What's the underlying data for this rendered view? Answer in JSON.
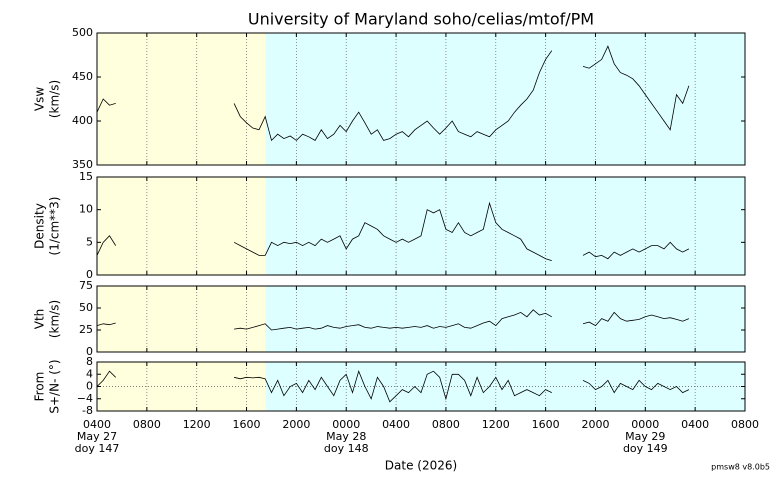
{
  "chart_data": {
    "type": "line",
    "title": "University of Maryland  soho/celias/mtof/PM",
    "xlabel": "Date (2026)",
    "footer": "pmsw8 v8.0b5",
    "line_color": "#000000",
    "xlim": [
      "2026-05-27T04:00",
      "2026-05-29T08:00"
    ],
    "xticks": [
      {
        "value": "2026-05-27T04:00",
        "label": "0400"
      },
      {
        "value": "2026-05-27T08:00",
        "label": "0800"
      },
      {
        "value": "2026-05-27T12:00",
        "label": "1200"
      },
      {
        "value": "2026-05-27T16:00",
        "label": "1600"
      },
      {
        "value": "2026-05-27T20:00",
        "label": "2000"
      },
      {
        "value": "2026-05-28T00:00",
        "label": "0000"
      },
      {
        "value": "2026-05-28T04:00",
        "label": "0400"
      },
      {
        "value": "2026-05-28T08:00",
        "label": "0800"
      },
      {
        "value": "2026-05-28T12:00",
        "label": "1200"
      },
      {
        "value": "2026-05-28T16:00",
        "label": "1600"
      },
      {
        "value": "2026-05-28T20:00",
        "label": "2000"
      },
      {
        "value": "2026-05-29T00:00",
        "label": "0000"
      },
      {
        "value": "2026-05-29T04:00",
        "label": "0400"
      },
      {
        "value": "2026-05-29T08:00",
        "label": "0800"
      }
    ],
    "day_labels": [
      {
        "at": "2026-05-27T04:00",
        "date": "May 27",
        "doy": "doy 147"
      },
      {
        "at": "2026-05-28T00:00",
        "date": "May 28",
        "doy": "doy 148"
      },
      {
        "at": "2026-05-29T00:00",
        "date": "May 29",
        "doy": "doy 149"
      }
    ],
    "shading": [
      {
        "from": "2026-05-27T04:00",
        "to": "2026-05-27T17:30",
        "color": "#ffffdd"
      },
      {
        "from": "2026-05-27T17:30",
        "to": "2026-05-29T08:00",
        "color": "#ddffff"
      }
    ],
    "grid": true,
    "x": [
      "2026-05-27T04:00",
      "2026-05-27T04:30",
      "2026-05-27T05:00",
      "2026-05-27T05:30",
      "2026-05-27T06:00",
      "2026-05-27T06:30",
      "2026-05-27T07:00",
      "2026-05-27T07:30",
      "2026-05-27T08:00",
      "2026-05-27T08:30",
      "2026-05-27T09:00",
      "2026-05-27T09:30",
      "2026-05-27T10:00",
      "2026-05-27T10:30",
      "2026-05-27T11:00",
      "2026-05-27T11:30",
      "2026-05-27T12:00",
      "2026-05-27T12:30",
      "2026-05-27T13:00",
      "2026-05-27T13:30",
      "2026-05-27T14:00",
      "2026-05-27T14:30",
      "2026-05-27T15:00",
      "2026-05-27T15:30",
      "2026-05-27T16:00",
      "2026-05-27T16:30",
      "2026-05-27T17:00",
      "2026-05-27T17:30",
      "2026-05-27T18:00",
      "2026-05-27T18:30",
      "2026-05-27T19:00",
      "2026-05-27T19:30",
      "2026-05-27T20:00",
      "2026-05-27T20:30",
      "2026-05-27T21:00",
      "2026-05-27T21:30",
      "2026-05-27T22:00",
      "2026-05-27T22:30",
      "2026-05-27T23:00",
      "2026-05-27T23:30",
      "2026-05-28T00:00",
      "2026-05-28T00:30",
      "2026-05-28T01:00",
      "2026-05-28T01:30",
      "2026-05-28T02:00",
      "2026-05-28T02:30",
      "2026-05-28T03:00",
      "2026-05-28T03:30",
      "2026-05-28T04:00",
      "2026-05-28T04:30",
      "2026-05-28T05:00",
      "2026-05-28T05:30",
      "2026-05-28T06:00",
      "2026-05-28T06:30",
      "2026-05-28T07:00",
      "2026-05-28T07:30",
      "2026-05-28T08:00",
      "2026-05-28T08:30",
      "2026-05-28T09:00",
      "2026-05-28T09:30",
      "2026-05-28T10:00",
      "2026-05-28T10:30",
      "2026-05-28T11:00",
      "2026-05-28T11:30",
      "2026-05-28T12:00",
      "2026-05-28T12:30",
      "2026-05-28T13:00",
      "2026-05-28T13:30",
      "2026-05-28T14:00",
      "2026-05-28T14:30",
      "2026-05-28T15:00",
      "2026-05-28T15:30",
      "2026-05-28T16:00",
      "2026-05-28T16:30",
      "2026-05-28T17:00",
      "2026-05-28T17:30",
      "2026-05-28T18:00",
      "2026-05-28T18:30",
      "2026-05-28T19:00",
      "2026-05-28T19:30",
      "2026-05-28T20:00",
      "2026-05-28T20:30",
      "2026-05-28T21:00",
      "2026-05-28T21:30",
      "2026-05-28T22:00",
      "2026-05-28T22:30",
      "2026-05-28T23:00",
      "2026-05-28T23:30",
      "2026-05-29T00:00",
      "2026-05-29T00:30",
      "2026-05-29T01:00",
      "2026-05-29T01:30",
      "2026-05-29T02:00",
      "2026-05-29T02:30",
      "2026-05-29T03:00",
      "2026-05-29T03:30",
      "2026-05-29T04:00",
      "2026-05-29T04:30",
      "2026-05-29T05:00",
      "2026-05-29T05:30",
      "2026-05-29T06:00",
      "2026-05-29T06:30",
      "2026-05-29T07:00",
      "2026-05-29T07:30",
      "2026-05-29T08:00"
    ],
    "panels": [
      {
        "ylabel": [
          "Vsw",
          "(km/s)"
        ],
        "ylim": [
          350,
          500
        ],
        "yticks": [
          350,
          400,
          450,
          500
        ],
        "values": [
          410,
          425,
          418,
          420,
          null,
          null,
          null,
          null,
          null,
          null,
          null,
          null,
          null,
          null,
          null,
          null,
          null,
          null,
          null,
          null,
          null,
          null,
          420,
          405,
          398,
          392,
          390,
          405,
          378,
          385,
          380,
          383,
          378,
          385,
          382,
          378,
          390,
          380,
          385,
          395,
          388,
          400,
          410,
          398,
          385,
          390,
          378,
          380,
          385,
          388,
          382,
          390,
          395,
          400,
          392,
          385,
          392,
          400,
          388,
          385,
          382,
          388,
          385,
          382,
          390,
          395,
          400,
          410,
          418,
          425,
          435,
          455,
          470,
          480,
          null,
          null,
          null,
          null,
          462,
          460,
          465,
          470,
          485,
          465,
          455,
          452,
          448,
          440,
          430,
          420,
          410,
          400,
          390,
          430,
          420,
          440,
          null,
          null,
          null,
          null,
          null,
          null,
          null,
          null,
          null
        ]
      },
      {
        "ylabel": [
          "Density",
          "(1/cm**3)"
        ],
        "ylim": [
          0,
          15
        ],
        "yticks": [
          0,
          5,
          10,
          15
        ],
        "values": [
          3,
          5,
          6,
          4.5,
          null,
          null,
          null,
          null,
          null,
          null,
          null,
          null,
          null,
          null,
          null,
          null,
          null,
          null,
          null,
          null,
          null,
          null,
          5,
          4.5,
          4,
          3.5,
          3,
          3,
          5,
          4.5,
          5,
          4.8,
          5,
          4.5,
          5,
          4.5,
          5.5,
          5,
          5.5,
          6,
          4,
          5.5,
          6,
          8,
          7.5,
          7,
          6,
          5.5,
          5,
          5.5,
          5,
          5.5,
          6,
          10,
          9.5,
          10,
          7,
          6.5,
          8,
          6.5,
          6,
          6.5,
          7,
          11,
          8,
          7,
          6.5,
          6,
          5.5,
          4,
          3.5,
          3,
          2.5,
          2.2,
          null,
          null,
          null,
          null,
          3,
          3.5,
          2.8,
          3,
          2.5,
          3.5,
          3,
          3.5,
          4,
          3.5,
          4,
          4.5,
          4.5,
          4,
          5,
          4,
          3.5,
          4,
          null,
          null,
          null,
          null,
          null,
          null,
          null,
          null,
          null
        ]
      },
      {
        "ylabel": [
          "Vth",
          "(km/s)"
        ],
        "ylim": [
          0,
          75
        ],
        "yticks": [
          0,
          25,
          50,
          75
        ],
        "values": [
          30,
          32,
          31,
          33,
          null,
          null,
          null,
          null,
          null,
          null,
          null,
          null,
          null,
          null,
          null,
          null,
          null,
          null,
          null,
          null,
          null,
          null,
          26,
          27,
          26,
          28,
          30,
          32,
          25,
          26,
          27,
          28,
          26,
          27,
          28,
          26,
          27,
          30,
          28,
          27,
          29,
          30,
          31,
          28,
          27,
          29,
          28,
          27,
          28,
          27,
          28,
          29,
          28,
          30,
          27,
          29,
          28,
          30,
          32,
          28,
          27,
          30,
          33,
          35,
          30,
          38,
          40,
          42,
          45,
          40,
          48,
          42,
          44,
          40,
          null,
          null,
          null,
          null,
          32,
          34,
          30,
          38,
          35,
          45,
          38,
          35,
          36,
          37,
          40,
          42,
          40,
          38,
          39,
          37,
          35,
          38,
          null,
          null,
          null,
          null,
          null,
          null,
          null,
          null,
          null
        ]
      },
      {
        "ylabel": [
          "From",
          "S+/N- (°)"
        ],
        "ylim": [
          -8,
          8
        ],
        "yticks": [
          -8,
          {
            "value": -4,
            "label": "−4"
          },
          0,
          4,
          8
        ],
        "zero_line": true,
        "yticks_fix": null,
        "values": [
          0,
          2,
          5,
          3,
          null,
          null,
          null,
          null,
          null,
          null,
          null,
          null,
          null,
          null,
          null,
          null,
          null,
          null,
          null,
          null,
          null,
          null,
          3,
          2.5,
          3,
          2.8,
          3,
          2.5,
          -2,
          2,
          -3,
          0,
          1,
          -2,
          2,
          -1,
          3,
          0,
          -3,
          2,
          4,
          -2,
          5,
          0,
          -4,
          3,
          0,
          -5,
          -3,
          -1,
          -2,
          0,
          -2,
          4,
          5,
          3,
          -4,
          4,
          4,
          2,
          -3,
          3,
          -2,
          0,
          3,
          -1,
          2,
          -3,
          -2,
          -1,
          -2,
          -3,
          -1,
          -2,
          null,
          null,
          null,
          null,
          2,
          1,
          -1,
          0,
          2,
          -2,
          1,
          0,
          -1,
          2,
          0,
          -1,
          1,
          0,
          -1,
          0,
          -2,
          -1,
          null,
          null,
          null,
          null,
          null,
          null,
          null,
          null,
          null
        ]
      }
    ]
  }
}
